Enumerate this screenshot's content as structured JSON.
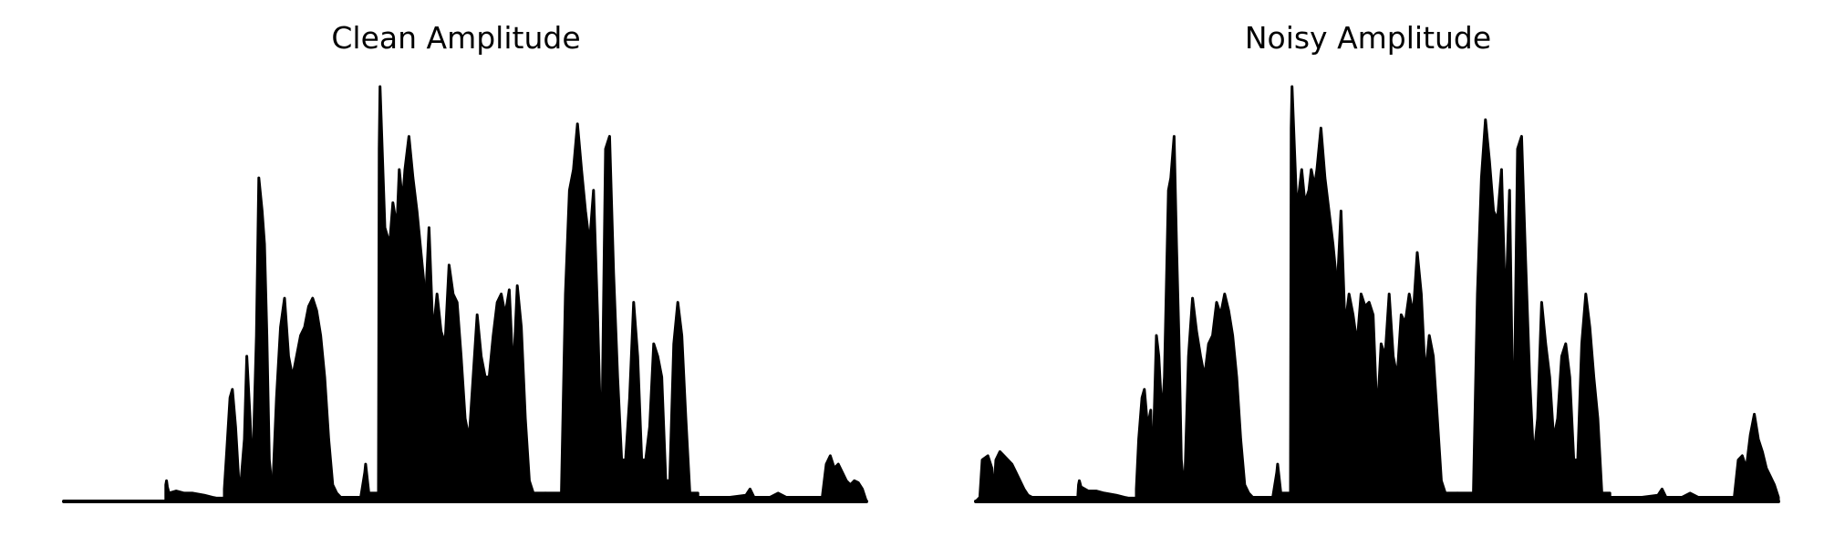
{
  "chart_data": [
    {
      "type": "area",
      "title": "Clean Amplitude",
      "xlabel": "",
      "ylabel": "",
      "axes_visible": false,
      "grid": false,
      "color": "#000000",
      "ylim": [
        0,
        1.0
      ],
      "segments": [
        {
          "x": [
            0.0,
            0.127
          ],
          "y": [
            0.0,
            0.0
          ]
        },
        {
          "x": [
            0.127,
            0.128,
            0.129,
            0.131,
            0.14,
            0.15,
            0.16,
            0.175,
            0.185,
            0.19,
            0.2
          ],
          "y": [
            0.04,
            0.05,
            0.035,
            0.02,
            0.025,
            0.02,
            0.02,
            0.015,
            0.01,
            0.008,
            0.008
          ]
        },
        {
          "x": [
            0.2,
            0.203,
            0.207,
            0.21,
            0.214,
            0.218,
            0.22,
            0.225,
            0.228,
            0.232,
            0.235,
            0.24,
            0.243,
            0.247,
            0.25,
            0.253,
            0.256,
            0.26
          ],
          "y": [
            0.03,
            0.12,
            0.25,
            0.27,
            0.18,
            0.05,
            0.03,
            0.15,
            0.35,
            0.2,
            0.05,
            0.4,
            0.78,
            0.7,
            0.62,
            0.4,
            0.1,
            0.02
          ]
        },
        {
          "x": [
            0.26,
            0.265,
            0.27,
            0.275,
            0.28,
            0.285,
            0.29,
            0.295,
            0.3,
            0.305,
            0.31,
            0.315,
            0.32,
            0.325,
            0.33,
            0.335,
            0.34,
            0.345
          ],
          "y": [
            0.02,
            0.25,
            0.42,
            0.49,
            0.35,
            0.3,
            0.35,
            0.4,
            0.42,
            0.47,
            0.49,
            0.46,
            0.4,
            0.3,
            0.15,
            0.04,
            0.02,
            0.01
          ]
        },
        {
          "x": [
            0.345,
            0.37,
            0.375,
            0.376,
            0.38,
            0.392,
            0.393,
            0.394,
            0.4,
            0.406,
            0.41,
            0.415,
            0.418,
            0.422,
            0.425,
            0.43,
            0.435,
            0.44,
            0.445,
            0.45
          ],
          "y": [
            0.01,
            0.01,
            0.07,
            0.09,
            0.02,
            0.02,
            0.85,
            1.0,
            0.66,
            0.62,
            0.72,
            0.66,
            0.8,
            0.72,
            0.8,
            0.88,
            0.78,
            0.7,
            0.6,
            0.5
          ]
        },
        {
          "x": [
            0.45,
            0.455,
            0.46,
            0.465,
            0.47,
            0.475,
            0.48,
            0.485,
            0.49,
            0.495,
            0.5,
            0.505,
            0.51,
            0.515,
            0.52,
            0.525,
            0.53,
            0.535,
            0.54,
            0.545,
            0.55,
            0.555,
            0.56,
            0.565,
            0.57,
            0.575,
            0.58,
            0.585,
            0.59,
            0.6
          ],
          "y": [
            0.45,
            0.66,
            0.4,
            0.5,
            0.41,
            0.38,
            0.57,
            0.5,
            0.48,
            0.35,
            0.2,
            0.15,
            0.3,
            0.45,
            0.35,
            0.3,
            0.3,
            0.4,
            0.48,
            0.5,
            0.45,
            0.51,
            0.3,
            0.52,
            0.42,
            0.2,
            0.05,
            0.02,
            0.02,
            0.02
          ]
        },
        {
          "x": [
            0.6,
            0.62,
            0.625,
            0.63,
            0.635,
            0.64,
            0.645,
            0.65,
            0.655,
            0.66,
            0.665,
            0.67,
            0.675,
            0.68,
            0.685,
            0.69,
            0.695,
            0.7,
            0.705,
            0.71,
            0.715,
            0.72,
            0.725,
            0.73,
            0.735,
            0.74,
            0.745,
            0.75,
            0.755,
            0.76,
            0.765,
            0.77,
            0.775,
            0.78,
            0.79
          ],
          "y": [
            0.02,
            0.02,
            0.5,
            0.75,
            0.8,
            0.91,
            0.8,
            0.7,
            0.62,
            0.75,
            0.45,
            0.1,
            0.85,
            0.88,
            0.55,
            0.3,
            0.1,
            0.1,
            0.25,
            0.48,
            0.35,
            0.1,
            0.1,
            0.18,
            0.38,
            0.35,
            0.3,
            0.05,
            0.05,
            0.38,
            0.48,
            0.4,
            0.2,
            0.02,
            0.02
          ]
        },
        {
          "x": [
            0.79,
            0.8,
            0.83,
            0.85,
            0.855,
            0.86,
            0.87,
            0.875,
            0.88,
            0.885,
            0.89,
            0.9
          ],
          "y": [
            0.01,
            0.01,
            0.01,
            0.015,
            0.03,
            0.01,
            0.01,
            0.01,
            0.01,
            0.015,
            0.02,
            0.01
          ]
        },
        {
          "x": [
            0.9,
            0.92,
            0.945,
            0.95,
            0.955,
            0.96,
            0.965,
            0.97,
            0.975,
            0.98,
            0.985,
            0.99,
            0.995,
            1.0
          ],
          "y": [
            0.01,
            0.01,
            0.01,
            0.09,
            0.11,
            0.08,
            0.09,
            0.07,
            0.05,
            0.04,
            0.05,
            0.045,
            0.03,
            0.0
          ]
        }
      ]
    },
    {
      "type": "area",
      "title": "Noisy Amplitude",
      "xlabel": "",
      "ylabel": "",
      "axes_visible": false,
      "grid": false,
      "color": "#000000",
      "ylim": [
        0,
        1.0
      ],
      "segments": [
        {
          "x": [
            0.0,
            0.005,
            0.008,
            0.015,
            0.02,
            0.022,
            0.025,
            0.03,
            0.035,
            0.04,
            0.045,
            0.05,
            0.055,
            0.06,
            0.065,
            0.07
          ],
          "y": [
            0.0,
            0.01,
            0.1,
            0.11,
            0.08,
            0.01,
            0.1,
            0.12,
            0.11,
            0.1,
            0.09,
            0.07,
            0.05,
            0.03,
            0.015,
            0.01
          ]
        },
        {
          "x": [
            0.07,
            0.127,
            0.128,
            0.129,
            0.131,
            0.14,
            0.15,
            0.16,
            0.175,
            0.185,
            0.19,
            0.2
          ],
          "y": [
            0.01,
            0.01,
            0.04,
            0.05,
            0.035,
            0.025,
            0.025,
            0.02,
            0.015,
            0.01,
            0.008,
            0.008
          ]
        },
        {
          "x": [
            0.2,
            0.203,
            0.207,
            0.21,
            0.214,
            0.218,
            0.22,
            0.225,
            0.228,
            0.232,
            0.235,
            0.24,
            0.243,
            0.247,
            0.25,
            0.253,
            0.256,
            0.26
          ],
          "y": [
            0.03,
            0.15,
            0.25,
            0.27,
            0.18,
            0.22,
            0.05,
            0.4,
            0.35,
            0.2,
            0.3,
            0.75,
            0.78,
            0.88,
            0.62,
            0.4,
            0.1,
            0.02
          ]
        },
        {
          "x": [
            0.26,
            0.265,
            0.27,
            0.275,
            0.28,
            0.285,
            0.29,
            0.295,
            0.3,
            0.305,
            0.31,
            0.315,
            0.32,
            0.325,
            0.33,
            0.335,
            0.34,
            0.345
          ],
          "y": [
            0.02,
            0.35,
            0.49,
            0.41,
            0.35,
            0.3,
            0.38,
            0.4,
            0.48,
            0.45,
            0.5,
            0.46,
            0.4,
            0.3,
            0.15,
            0.04,
            0.02,
            0.01
          ]
        },
        {
          "x": [
            0.345,
            0.37,
            0.375,
            0.376,
            0.38,
            0.392,
            0.393,
            0.394,
            0.4,
            0.406,
            0.41,
            0.415,
            0.418,
            0.422,
            0.425,
            0.43,
            0.435,
            0.44,
            0.445,
            0.45
          ],
          "y": [
            0.01,
            0.01,
            0.07,
            0.09,
            0.02,
            0.02,
            0.9,
            1.0,
            0.7,
            0.8,
            0.72,
            0.75,
            0.8,
            0.76,
            0.8,
            0.9,
            0.78,
            0.7,
            0.62,
            0.52
          ]
        },
        {
          "x": [
            0.45,
            0.455,
            0.46,
            0.465,
            0.47,
            0.475,
            0.48,
            0.485,
            0.49,
            0.495,
            0.5,
            0.505,
            0.51,
            0.515,
            0.52,
            0.525,
            0.53,
            0.535,
            0.54,
            0.545,
            0.55,
            0.555,
            0.56,
            0.565,
            0.57,
            0.575,
            0.58,
            0.585,
            0.59,
            0.6
          ],
          "y": [
            0.5,
            0.7,
            0.42,
            0.5,
            0.45,
            0.38,
            0.5,
            0.47,
            0.48,
            0.45,
            0.2,
            0.38,
            0.35,
            0.5,
            0.35,
            0.3,
            0.45,
            0.43,
            0.5,
            0.45,
            0.6,
            0.5,
            0.3,
            0.4,
            0.35,
            0.2,
            0.05,
            0.02,
            0.02,
            0.02
          ]
        },
        {
          "x": [
            0.6,
            0.62,
            0.625,
            0.63,
            0.635,
            0.64,
            0.645,
            0.65,
            0.655,
            0.66,
            0.665,
            0.67,
            0.675,
            0.68,
            0.685,
            0.69,
            0.695,
            0.7,
            0.705,
            0.71,
            0.715,
            0.72,
            0.725,
            0.73,
            0.735,
            0.74,
            0.745,
            0.75,
            0.755,
            0.76,
            0.765,
            0.77,
            0.775,
            0.78,
            0.79
          ],
          "y": [
            0.02,
            0.02,
            0.5,
            0.78,
            0.92,
            0.82,
            0.7,
            0.68,
            0.8,
            0.45,
            0.75,
            0.1,
            0.85,
            0.88,
            0.58,
            0.3,
            0.1,
            0.2,
            0.48,
            0.38,
            0.3,
            0.15,
            0.2,
            0.35,
            0.38,
            0.3,
            0.1,
            0.1,
            0.38,
            0.5,
            0.42,
            0.3,
            0.2,
            0.02,
            0.02
          ]
        },
        {
          "x": [
            0.79,
            0.8,
            0.83,
            0.85,
            0.855,
            0.86,
            0.87,
            0.875,
            0.88,
            0.885,
            0.89,
            0.9
          ],
          "y": [
            0.01,
            0.01,
            0.01,
            0.015,
            0.03,
            0.01,
            0.01,
            0.01,
            0.01,
            0.015,
            0.02,
            0.01
          ]
        },
        {
          "x": [
            0.9,
            0.92,
            0.945,
            0.95,
            0.955,
            0.96,
            0.965,
            0.97,
            0.975,
            0.98,
            0.985,
            0.99,
            0.995,
            1.0
          ],
          "y": [
            0.01,
            0.01,
            0.01,
            0.1,
            0.11,
            0.08,
            0.16,
            0.21,
            0.15,
            0.12,
            0.08,
            0.06,
            0.04,
            0.01
          ]
        }
      ]
    }
  ]
}
